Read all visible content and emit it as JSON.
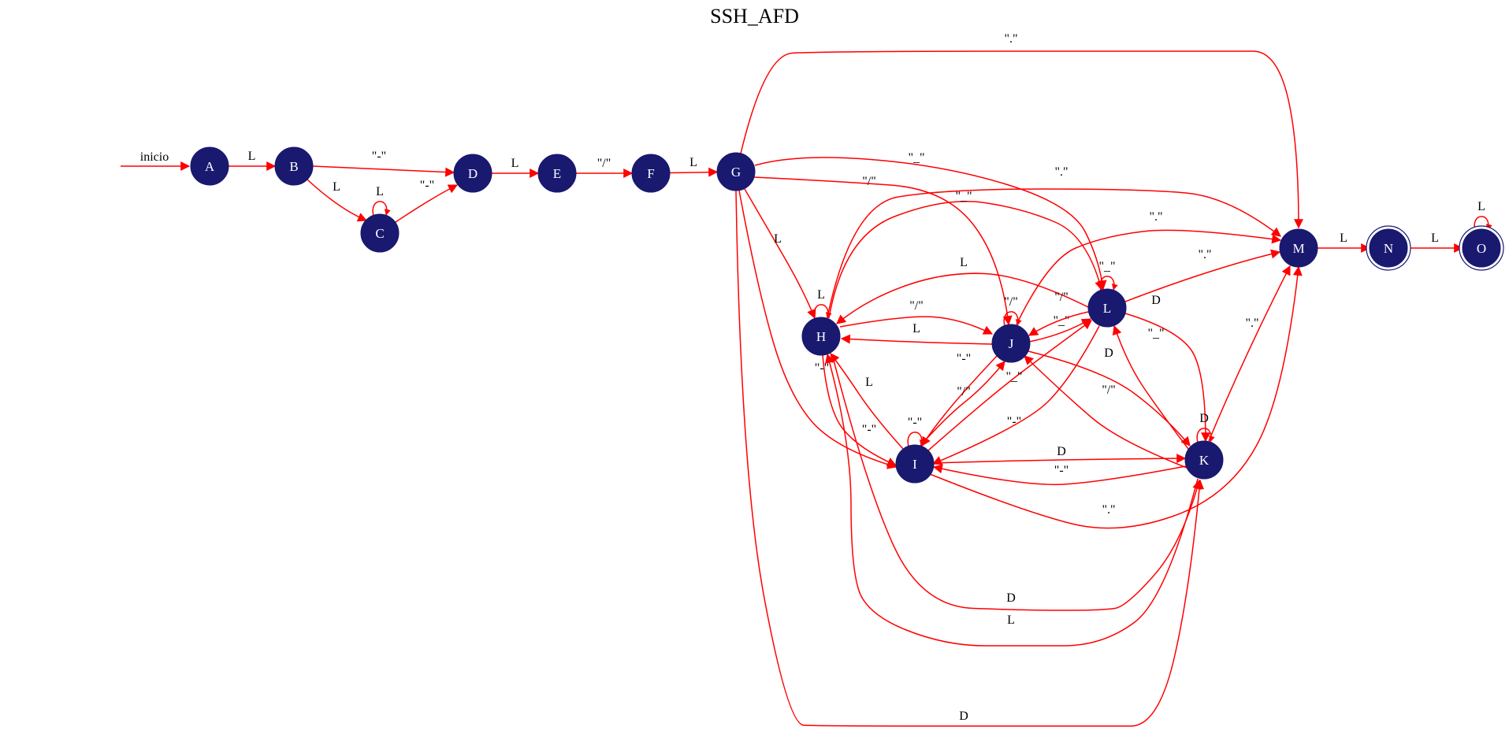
{
  "title": "SSH_AFD",
  "colors": {
    "node_fill": "#191970",
    "edge": "#ff0000",
    "text": "#000000",
    "node_text": "#ffffff"
  },
  "start_label": "inicio",
  "states": [
    {
      "id": "A",
      "accepting": false
    },
    {
      "id": "B",
      "accepting": false
    },
    {
      "id": "C",
      "accepting": false
    },
    {
      "id": "D",
      "accepting": false
    },
    {
      "id": "E",
      "accepting": false
    },
    {
      "id": "F",
      "accepting": false
    },
    {
      "id": "G",
      "accepting": false
    },
    {
      "id": "H",
      "accepting": false
    },
    {
      "id": "I",
      "accepting": false
    },
    {
      "id": "J",
      "accepting": false
    },
    {
      "id": "K",
      "accepting": false
    },
    {
      "id": "L",
      "accepting": false
    },
    {
      "id": "M",
      "accepting": false
    },
    {
      "id": "N",
      "accepting": true
    },
    {
      "id": "O",
      "accepting": true
    }
  ],
  "transitions": [
    {
      "from": "A",
      "to": "B",
      "label": "L"
    },
    {
      "from": "B",
      "to": "D",
      "label": "\"-\""
    },
    {
      "from": "B",
      "to": "C",
      "label": "L"
    },
    {
      "from": "C",
      "to": "C",
      "label": "L"
    },
    {
      "from": "C",
      "to": "D",
      "label": "\"-\""
    },
    {
      "from": "D",
      "to": "E",
      "label": "L"
    },
    {
      "from": "E",
      "to": "F",
      "label": "\"/\""
    },
    {
      "from": "F",
      "to": "G",
      "label": "L"
    },
    {
      "from": "G",
      "to": "M",
      "label": "\".\""
    },
    {
      "from": "G",
      "to": "L",
      "label": "\"_\""
    },
    {
      "from": "G",
      "to": "J",
      "label": "\"/\""
    },
    {
      "from": "G",
      "to": "H",
      "label": "L"
    },
    {
      "from": "G",
      "to": "I",
      "label": "\"-\""
    },
    {
      "from": "G",
      "to": "K",
      "label": "D"
    },
    {
      "from": "H",
      "to": "M",
      "label": "\".\""
    },
    {
      "from": "H",
      "to": "L",
      "label": "\"_\""
    },
    {
      "from": "H",
      "to": "H",
      "label": "L"
    },
    {
      "from": "H",
      "to": "J",
      "label": "\"/\""
    },
    {
      "from": "H",
      "to": "I",
      "label": "\"-\""
    },
    {
      "from": "H",
      "to": "K",
      "label": "D"
    },
    {
      "from": "J",
      "to": "M",
      "label": "\".\""
    },
    {
      "from": "J",
      "to": "H",
      "label": "L"
    },
    {
      "from": "J",
      "to": "J",
      "label": "\"/\""
    },
    {
      "from": "J",
      "to": "L",
      "label": "\"_\""
    },
    {
      "from": "J",
      "to": "K",
      "label": "D"
    },
    {
      "from": "J",
      "to": "I",
      "label": "\"-\""
    },
    {
      "from": "L",
      "to": "L",
      "label": "\"_\""
    },
    {
      "from": "L",
      "to": "M",
      "label": "\".\""
    },
    {
      "from": "L",
      "to": "H",
      "label": "L"
    },
    {
      "from": "L",
      "to": "J",
      "label": "\"/\""
    },
    {
      "from": "L",
      "to": "K",
      "label": "D"
    },
    {
      "from": "L",
      "to": "I",
      "label": "\"-\""
    },
    {
      "from": "I",
      "to": "I",
      "label": "\"-\""
    },
    {
      "from": "I",
      "to": "H",
      "label": "L"
    },
    {
      "from": "I",
      "to": "J",
      "label": "\"/\""
    },
    {
      "from": "I",
      "to": "L",
      "label": "\"_\""
    },
    {
      "from": "I",
      "to": "K",
      "label": "D"
    },
    {
      "from": "I",
      "to": "M",
      "label": "\".\""
    },
    {
      "from": "K",
      "to": "K",
      "label": "D"
    },
    {
      "from": "K",
      "to": "I",
      "label": "\"-\""
    },
    {
      "from": "K",
      "to": "J",
      "label": "\"/\""
    },
    {
      "from": "K",
      "to": "L",
      "label": "\"_\""
    },
    {
      "from": "K",
      "to": "M",
      "label": "\".\""
    },
    {
      "from": "K",
      "to": "H",
      "label": "L"
    },
    {
      "from": "M",
      "to": "N",
      "label": "L"
    },
    {
      "from": "N",
      "to": "O",
      "label": "L"
    },
    {
      "from": "O",
      "to": "O",
      "label": "L"
    }
  ]
}
